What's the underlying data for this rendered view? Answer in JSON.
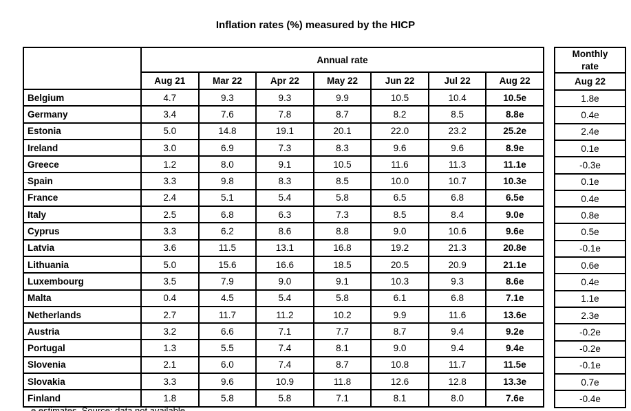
{
  "chart_data": {
    "type": "table",
    "title": "Inflation rates (%) measured by the HICP",
    "column_groups": {
      "annual": "Annual rate",
      "monthly": "Monthly\nrate"
    },
    "annual_columns": [
      "Aug 21",
      "Mar 22",
      "Apr 22",
      "May 22",
      "Jun 22",
      "Jul 22",
      "Aug 22"
    ],
    "monthly_column": "Aug 22",
    "rows": [
      {
        "country": "Belgium",
        "annual": [
          "4.7",
          "9.3",
          "9.3",
          "9.9",
          "10.5",
          "10.4",
          "10.5e"
        ],
        "monthly": "1.8e"
      },
      {
        "country": "Germany",
        "annual": [
          "3.4",
          "7.6",
          "7.8",
          "8.7",
          "8.2",
          "8.5",
          "8.8e"
        ],
        "monthly": "0.4e"
      },
      {
        "country": "Estonia",
        "annual": [
          "5.0",
          "14.8",
          "19.1",
          "20.1",
          "22.0",
          "23.2",
          "25.2e"
        ],
        "monthly": "2.4e"
      },
      {
        "country": "Ireland",
        "annual": [
          "3.0",
          "6.9",
          "7.3",
          "8.3",
          "9.6",
          "9.6",
          "8.9e"
        ],
        "monthly": "0.1e"
      },
      {
        "country": "Greece",
        "annual": [
          "1.2",
          "8.0",
          "9.1",
          "10.5",
          "11.6",
          "11.3",
          "11.1e"
        ],
        "monthly": "-0.3e"
      },
      {
        "country": "Spain",
        "annual": [
          "3.3",
          "9.8",
          "8.3",
          "8.5",
          "10.0",
          "10.7",
          "10.3e"
        ],
        "monthly": "0.1e"
      },
      {
        "country": "France",
        "annual": [
          "2.4",
          "5.1",
          "5.4",
          "5.8",
          "6.5",
          "6.8",
          "6.5e"
        ],
        "monthly": "0.4e"
      },
      {
        "country": "Italy",
        "annual": [
          "2.5",
          "6.8",
          "6.3",
          "7.3",
          "8.5",
          "8.4",
          "9.0e"
        ],
        "monthly": "0.8e"
      },
      {
        "country": "Cyprus",
        "annual": [
          "3.3",
          "6.2",
          "8.6",
          "8.8",
          "9.0",
          "10.6",
          "9.6e"
        ],
        "monthly": "0.5e"
      },
      {
        "country": "Latvia",
        "annual": [
          "3.6",
          "11.5",
          "13.1",
          "16.8",
          "19.2",
          "21.3",
          "20.8e"
        ],
        "monthly": "-0.1e"
      },
      {
        "country": "Lithuania",
        "annual": [
          "5.0",
          "15.6",
          "16.6",
          "18.5",
          "20.5",
          "20.9",
          "21.1e"
        ],
        "monthly": "0.6e"
      },
      {
        "country": "Luxembourg",
        "annual": [
          "3.5",
          "7.9",
          "9.0",
          "9.1",
          "10.3",
          "9.3",
          "8.6e"
        ],
        "monthly": "0.4e"
      },
      {
        "country": "Malta",
        "annual": [
          "0.4",
          "4.5",
          "5.4",
          "5.8",
          "6.1",
          "6.8",
          "7.1e"
        ],
        "monthly": "1.1e"
      },
      {
        "country": "Netherlands",
        "annual": [
          "2.7",
          "11.7",
          "11.2",
          "10.2",
          "9.9",
          "11.6",
          "13.6e"
        ],
        "monthly": "2.3e"
      },
      {
        "country": "Austria",
        "annual": [
          "3.2",
          "6.6",
          "7.1",
          "7.7",
          "8.7",
          "9.4",
          "9.2e"
        ],
        "monthly": "-0.2e"
      },
      {
        "country": "Portugal",
        "annual": [
          "1.3",
          "5.5",
          "7.4",
          "8.1",
          "9.0",
          "9.4",
          "9.4e"
        ],
        "monthly": "-0.2e"
      },
      {
        "country": "Slovenia",
        "annual": [
          "2.1",
          "6.0",
          "7.4",
          "8.7",
          "10.8",
          "11.7",
          "11.5e"
        ],
        "monthly": "-0.1e"
      },
      {
        "country": "Slovakia",
        "annual": [
          "3.3",
          "9.6",
          "10.9",
          "11.8",
          "12.6",
          "12.8",
          "13.3e"
        ],
        "monthly": "0.7e"
      },
      {
        "country": "Finland",
        "annual": [
          "1.8",
          "5.8",
          "5.8",
          "7.1",
          "8.1",
          "8.0",
          "7.6e"
        ],
        "monthly": "-0.4e"
      }
    ],
    "footnote": "e estimates. Source: data not available",
    "colors": {
      "border": "#000000",
      "text": "#000000",
      "background": "#ffffff"
    }
  }
}
